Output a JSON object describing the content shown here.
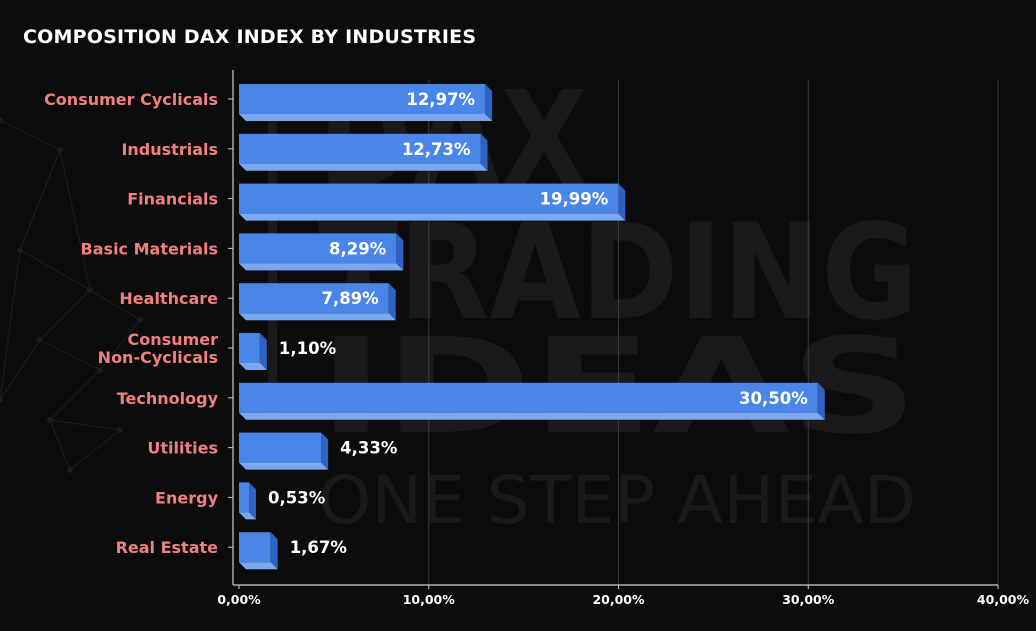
{
  "chart_data": {
    "type": "bar",
    "orientation": "horizontal",
    "title": "COMPOSITION DAX INDEX BY INDUSTRIES",
    "categories": [
      "Consumer Cyclicals",
      "Industrials",
      "Financials",
      "Basic Materials",
      "Healthcare",
      "Consumer Non-Cyclicals",
      "Technology",
      "Utilities",
      "Energy",
      "Real Estate"
    ],
    "values": [
      12.97,
      12.73,
      19.99,
      8.29,
      7.89,
      1.1,
      30.5,
      4.33,
      0.53,
      1.67
    ],
    "value_labels": [
      "12,97%",
      "12,73%",
      "19,99%",
      "8,29%",
      "7,89%",
      "1,10%",
      "30,50%",
      "4,33%",
      "0,53%",
      "1,67%"
    ],
    "xlim": [
      0,
      40
    ],
    "x_ticks": [
      "0,00%",
      "10,00%",
      "20,00%",
      "30,00%",
      "40,00%"
    ],
    "xlabel": "",
    "ylabel": "",
    "grid": "vertical",
    "colors": {
      "background": "#0c0c0c",
      "bar_front": "#4a86e8",
      "bar_top": "#7aa7f0",
      "bar_side": "#2f62c2",
      "category_label": "#f08080",
      "value_label": "#ffffff",
      "grid": "#3a3a3a",
      "axis": "#cccccc"
    }
  },
  "watermark": {
    "lines": [
      "DAX",
      "TRADING",
      "IDEAS"
    ],
    "tagline": "ONE STEP AHEAD"
  }
}
